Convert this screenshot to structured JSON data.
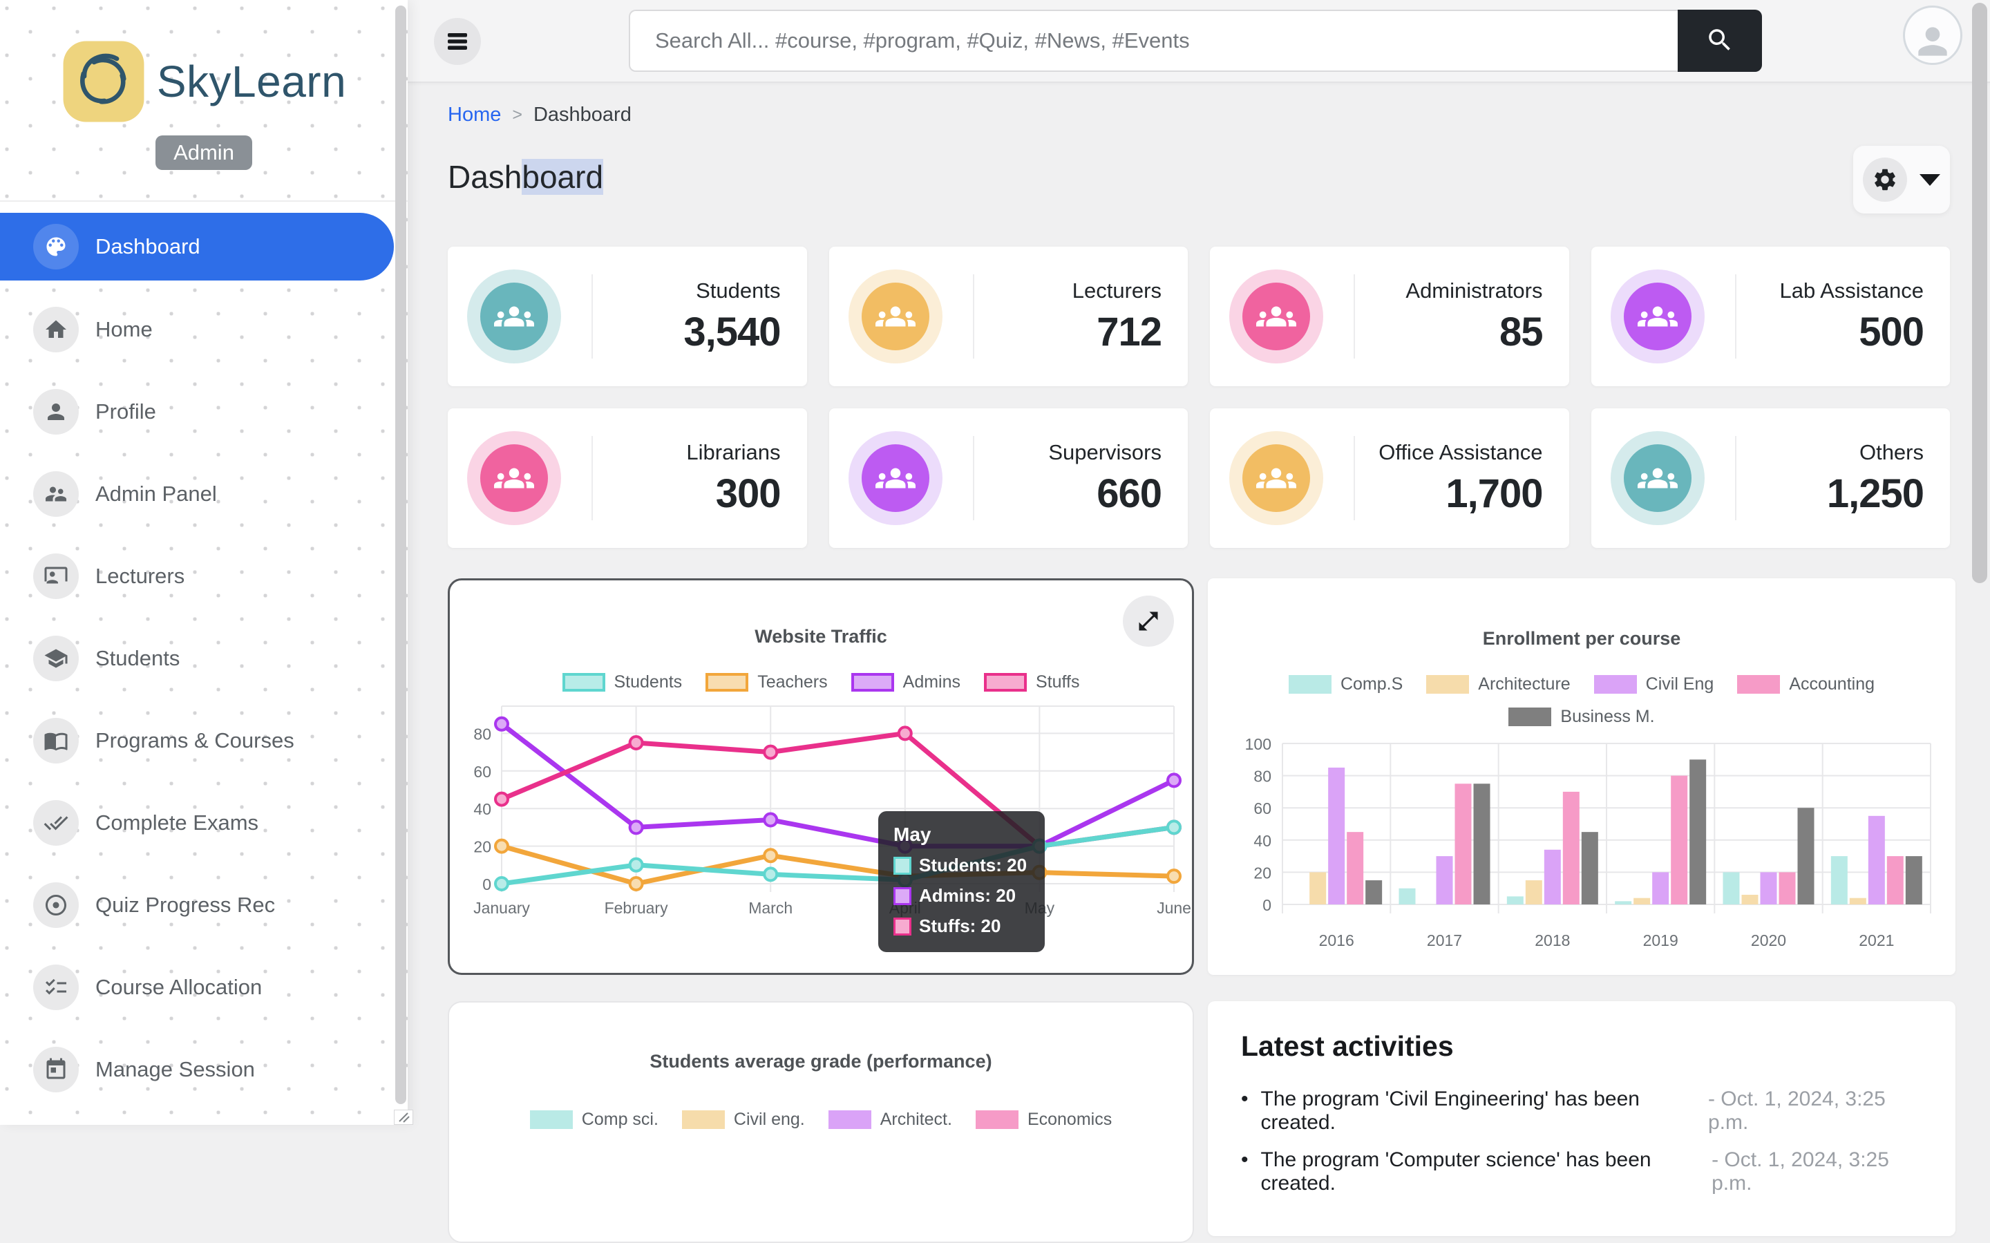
{
  "brand": {
    "name": "SkyLearn",
    "badge": "Admin",
    "logo_fill": "#eed47e",
    "logo_stroke": "#2f556b"
  },
  "topbar": {
    "search_placeholder": "Search All... #course, #program, #Quiz, #News, #Events"
  },
  "breadcrumb": {
    "home": "Home",
    "separator": ">",
    "current": "Dashboard"
  },
  "page": {
    "title_head": "Dash",
    "title_tail": "board"
  },
  "sidebar": {
    "items": [
      {
        "label": "Dashboard",
        "icon": "palette-icon",
        "active": true
      },
      {
        "label": "Home",
        "icon": "home-icon",
        "active": false
      },
      {
        "label": "Profile",
        "icon": "person-icon",
        "active": false
      },
      {
        "label": "Admin Panel",
        "icon": "manage-accounts-icon",
        "active": false
      },
      {
        "label": "Lecturers",
        "icon": "lecturer-icon",
        "active": false
      },
      {
        "label": "Students",
        "icon": "student-icon",
        "active": false
      },
      {
        "label": "Programs & Courses",
        "icon": "book-icon",
        "active": false
      },
      {
        "label": "Complete Exams",
        "icon": "double-check-icon",
        "active": false
      },
      {
        "label": "Quiz Progress Rec",
        "icon": "target-icon",
        "active": false
      },
      {
        "label": "Course Allocation",
        "icon": "checklist-icon",
        "active": false
      },
      {
        "label": "Manage Session",
        "icon": "calendar-icon",
        "active": false
      }
    ]
  },
  "stats": [
    {
      "label": "Students",
      "value": "3,540",
      "color": "#69b6bc",
      "halo": "#d5ebec"
    },
    {
      "label": "Lecturers",
      "value": "712",
      "color": "#f2bd63",
      "halo": "#fbeed7"
    },
    {
      "label": "Administrators",
      "value": "85",
      "color": "#f0639f",
      "halo": "#fad4e5"
    },
    {
      "label": "Lab Assistance",
      "value": "500",
      "color": "#bd5bf2",
      "halo": "#ecdcfb"
    },
    {
      "label": "Librarians",
      "value": "300",
      "color": "#f0639f",
      "halo": "#fad4e5"
    },
    {
      "label": "Supervisors",
      "value": "660",
      "color": "#bd5bf2",
      "halo": "#ecdcfb"
    },
    {
      "label": "Office Assistance",
      "value": "1,700",
      "color": "#f2bd63",
      "halo": "#fbeed7"
    },
    {
      "label": "Others",
      "value": "1,250",
      "color": "#69b6bc",
      "halo": "#d5ebec"
    }
  ],
  "chart_data": [
    {
      "id": "traffic",
      "type": "line",
      "title": "Website Traffic",
      "x": [
        "January",
        "February",
        "March",
        "April",
        "May",
        "June"
      ],
      "yticks": [
        0,
        20,
        40,
        60,
        80
      ],
      "ylim": [
        0,
        90
      ],
      "legend_style": "outlined",
      "grid": true,
      "legend_position": "top",
      "series": [
        {
          "name": "Students",
          "color": "#5fd6cf",
          "fill": "#b8ece8",
          "values": [
            0,
            10,
            5,
            2,
            20,
            30
          ],
          "z": 4
        },
        {
          "name": "Teachers",
          "color": "#f2a63b",
          "fill": "#f8ddb0",
          "values": [
            20,
            0,
            15,
            4,
            6,
            4
          ],
          "z": 3
        },
        {
          "name": "Admins",
          "color": "#aa36ef",
          "fill": "#dcaaf7",
          "values": [
            85,
            30,
            34,
            20,
            20,
            55
          ],
          "z": 1
        },
        {
          "name": "Stuffs",
          "color": "#e9308b",
          "fill": "#f7abd0",
          "values": [
            45,
            75,
            70,
            80,
            20,
            30
          ],
          "z": 2
        }
      ],
      "tooltip": {
        "title": "May",
        "x_index": 4,
        "rows": [
          {
            "series": "Students",
            "text": "Students: 20"
          },
          {
            "series": "Admins",
            "text": "Admins: 20"
          },
          {
            "series": "Stuffs",
            "text": "Stuffs: 20"
          }
        ]
      }
    },
    {
      "id": "enrollment",
      "type": "bar",
      "title": "Enrollment per course",
      "categories": [
        "2016",
        "2017",
        "2018",
        "2019",
        "2020",
        "2021"
      ],
      "yticks": [
        0,
        20,
        40,
        60,
        80,
        100
      ],
      "ylim": [
        0,
        100
      ],
      "legend_style": "flat",
      "grid": true,
      "legend_position": "top",
      "series": [
        {
          "name": "Comp.S",
          "color": "#b9eae6",
          "values": [
            0,
            10,
            5,
            2,
            20,
            30
          ]
        },
        {
          "name": "Architecture",
          "color": "#f6dcab",
          "values": [
            20,
            0,
            15,
            4,
            6,
            4
          ]
        },
        {
          "name": "Civil Eng",
          "color": "#daa3f7",
          "values": [
            85,
            30,
            34,
            20,
            20,
            55
          ]
        },
        {
          "name": "Accounting",
          "color": "#f69bc7",
          "values": [
            45,
            75,
            70,
            80,
            20,
            30
          ]
        },
        {
          "name": "Business M.",
          "color": "#7f7f7f",
          "values": [
            15,
            75,
            45,
            90,
            60,
            30
          ]
        }
      ]
    },
    {
      "id": "grades",
      "type": "line",
      "title": "Students average grade (performance)",
      "legend_only": true,
      "legend_style": "flat",
      "series": [
        {
          "name": "Comp sci.",
          "color": "#b9eae6"
        },
        {
          "name": "Civil eng.",
          "color": "#f6dcab"
        },
        {
          "name": "Architect.",
          "color": "#daa3f7"
        },
        {
          "name": "Economics",
          "color": "#f69bc7"
        }
      ]
    }
  ],
  "activities": {
    "title": "Latest activities",
    "items": [
      {
        "text": "The program 'Civil Engineering' has been created.",
        "date": "- Oct. 1, 2024, 3:25 p.m."
      },
      {
        "text": "The program 'Computer science' has been created.",
        "date": "- Oct. 1, 2024, 3:25 p.m."
      }
    ]
  },
  "colors": {
    "accent_blue": "#2e6ee8",
    "link_blue": "#2766f0",
    "search_btn_bg": "#22262b",
    "title_highlight": "#ccd6ee"
  }
}
